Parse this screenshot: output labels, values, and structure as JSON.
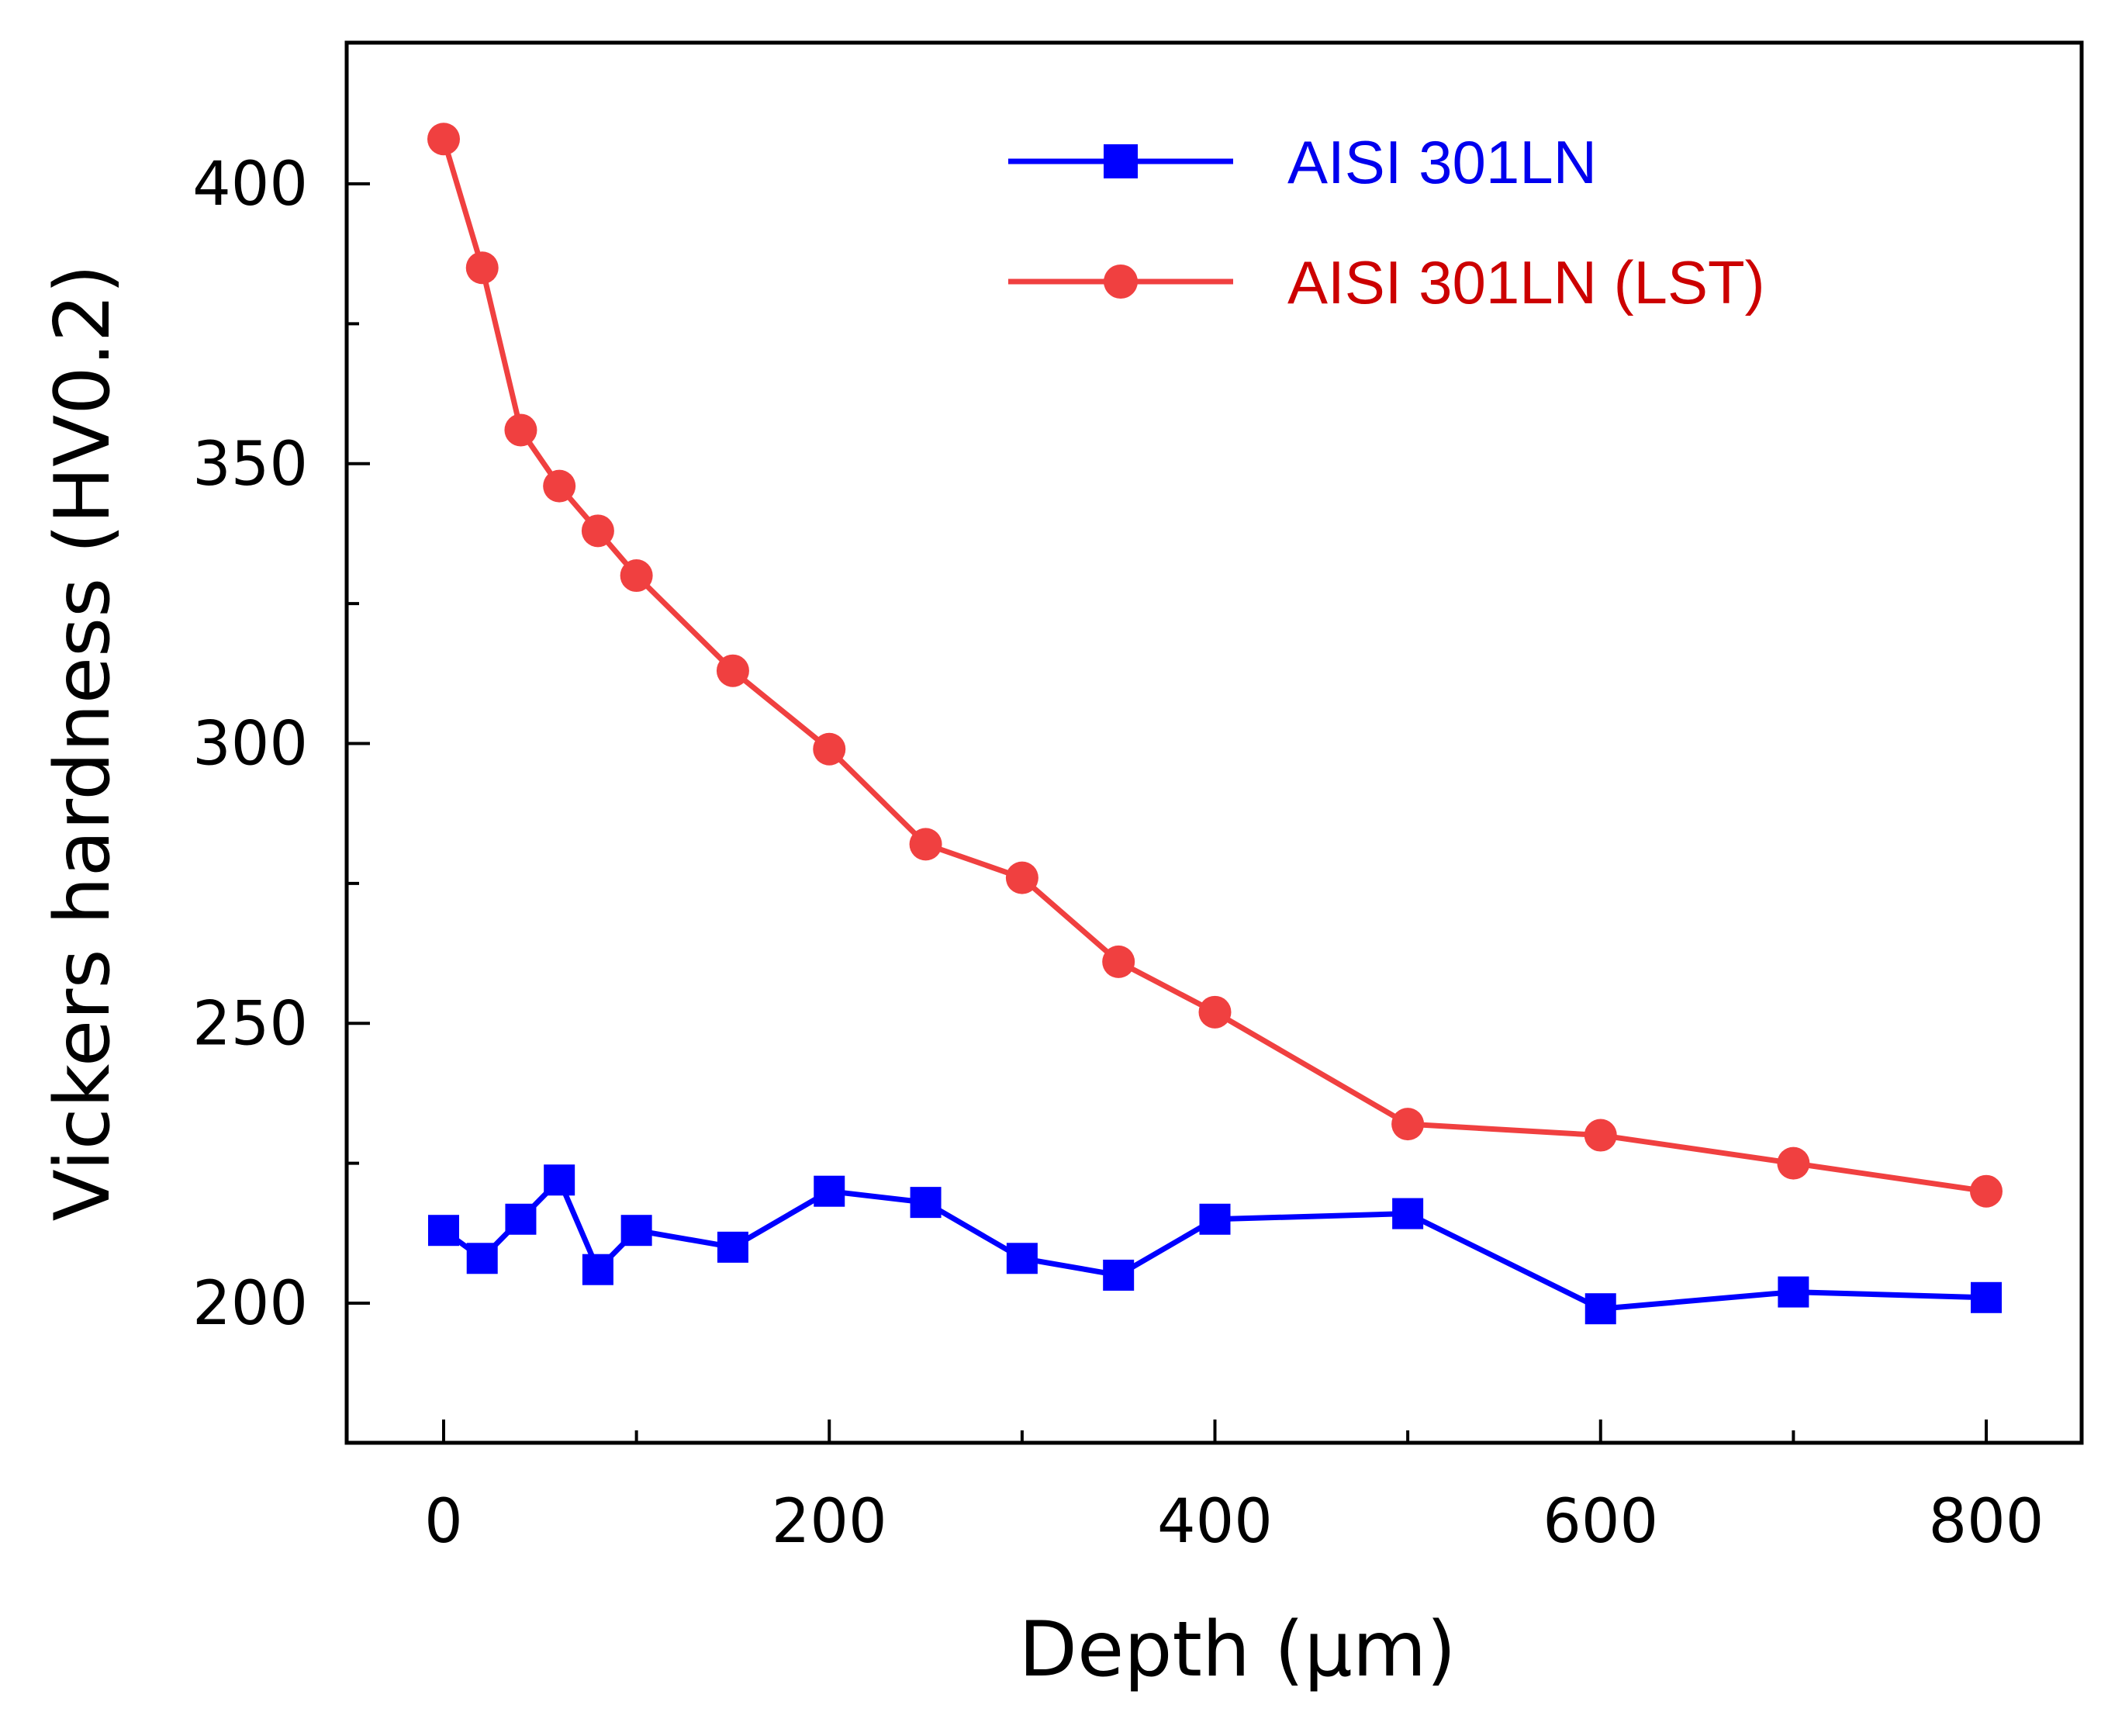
{
  "chart_data": {
    "type": "line",
    "title": "",
    "xlabel": "Depth (μm)",
    "ylabel": "Vickers hardness (HV0.2)",
    "xlim": [
      -50,
      850
    ],
    "ylim": [
      175,
      425
    ],
    "xticks": [
      0,
      200,
      400,
      600,
      800
    ],
    "yticks": [
      200,
      250,
      300,
      350,
      400
    ],
    "xticks_minor": [
      100,
      300,
      500,
      700
    ],
    "yticks_minor": [
      225,
      275,
      325,
      375
    ],
    "x_tick_labels": [
      "0",
      "200",
      "400",
      "600",
      "800"
    ],
    "y_tick_labels": [
      "200",
      "250",
      "300",
      "350",
      "400"
    ],
    "grid": false,
    "legend_position": "top-right",
    "series": [
      {
        "name": "AISI 301LN",
        "color": "#0000ff",
        "text_color": "#0000ee",
        "marker": "square",
        "x": [
          0,
          20,
          40,
          60,
          80,
          100,
          150,
          200,
          250,
          300,
          350,
          400,
          500,
          600,
          700,
          800
        ],
        "values": [
          213,
          208,
          215,
          222,
          206,
          213,
          210,
          220,
          218,
          208,
          205,
          215,
          216,
          199,
          202,
          201
        ]
      },
      {
        "name": "AISI 301LN (LST)",
        "color": "#f04040",
        "text_color": "#cc0000",
        "marker": "circle",
        "x": [
          0,
          20,
          40,
          60,
          80,
          100,
          150,
          200,
          250,
          300,
          350,
          400,
          500,
          600,
          700,
          800
        ],
        "values": [
          408,
          385,
          356,
          346,
          338,
          330,
          313,
          299,
          282,
          276,
          261,
          252,
          232,
          230,
          225,
          220
        ]
      }
    ]
  }
}
